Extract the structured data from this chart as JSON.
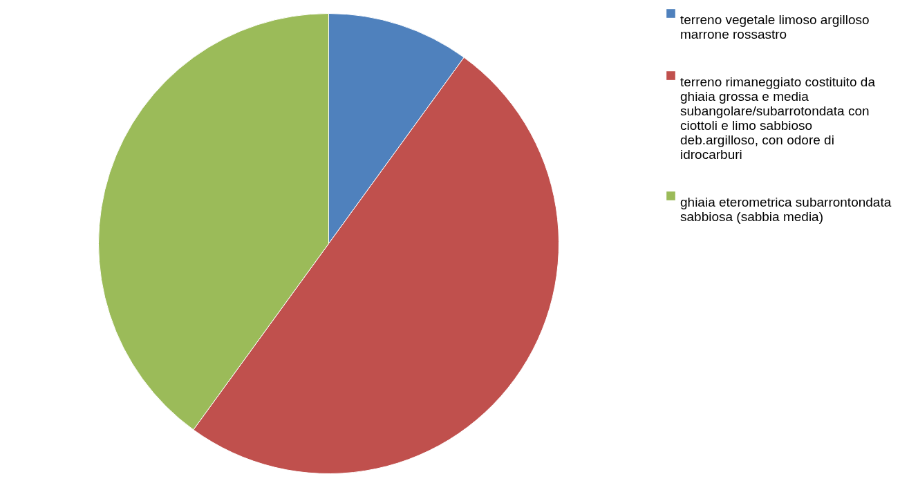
{
  "chart_data": {
    "type": "pie",
    "categories": [
      "terreno vegetale limoso argilloso marrone rossastro",
      "terreno rimaneggiato costituito da ghiaia grossa e media subangolare/subarrotondata con ciottoli e limo sabbioso deb.argilloso, con odore di idrocarburi",
      "ghiaia eterometrica subarrontondata sabbiosa (sabbia media)"
    ],
    "values": [
      10,
      50,
      40
    ],
    "colors": [
      "#4f81bd",
      "#c0504d",
      "#9bbb59"
    ],
    "legend": "right"
  }
}
